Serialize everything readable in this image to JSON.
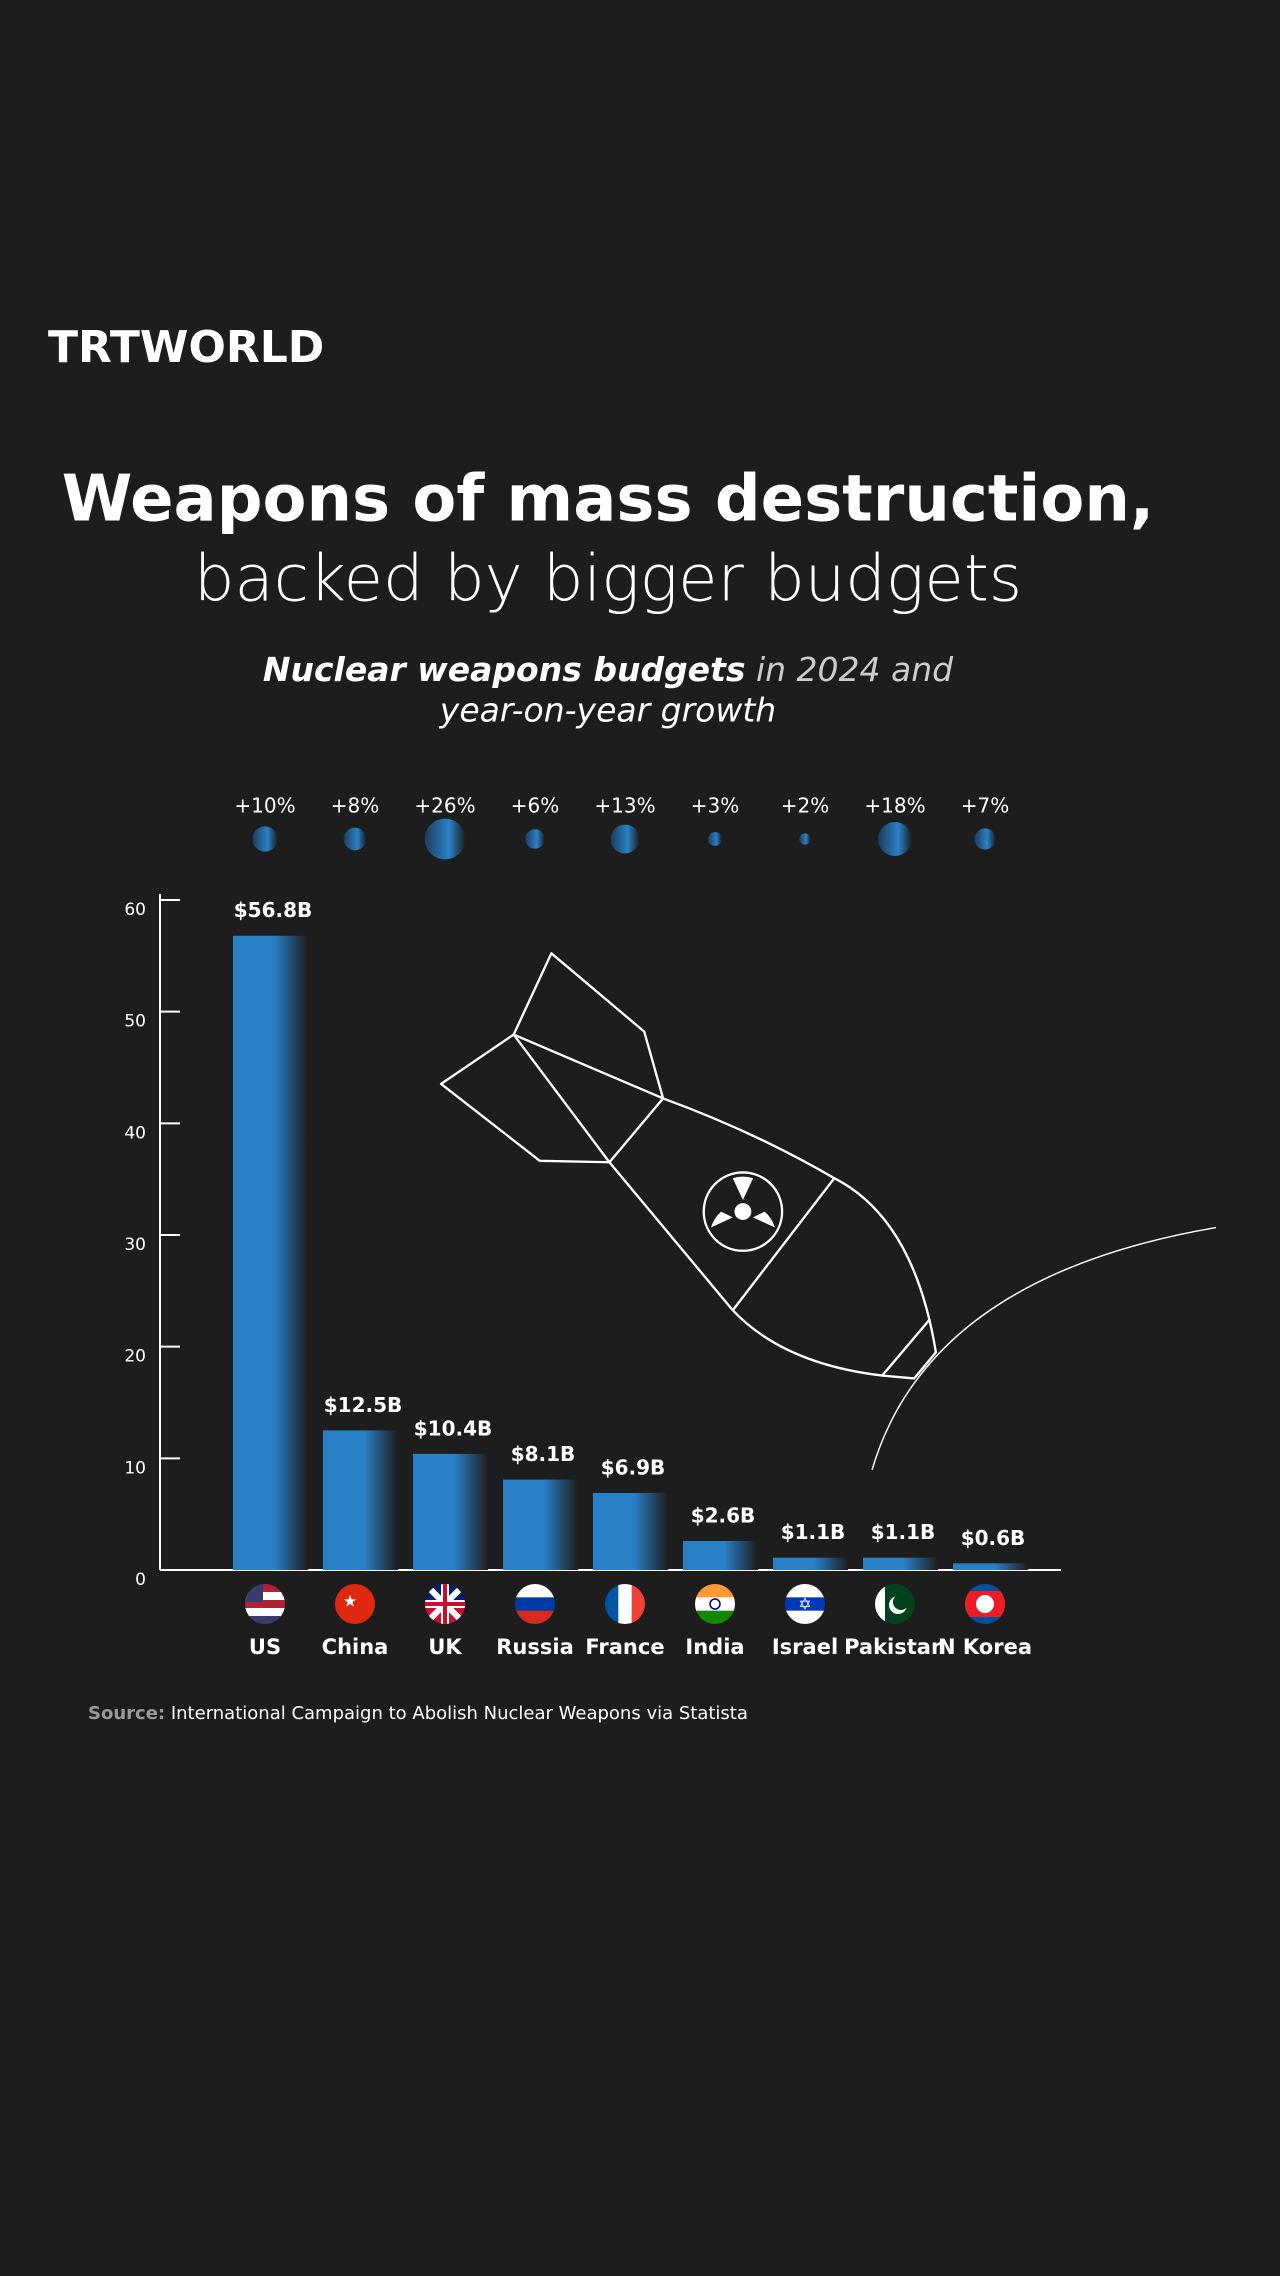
{
  "brand": "TRTWORLD",
  "chart_data": {
    "type": "bar",
    "title": [
      "Weapons of mass destruction,",
      "backed by bigger budgets"
    ],
    "subtitle": [
      "Nuclear weapons budgets",
      "in 2024 and",
      "year-on-year growth"
    ],
    "categories": [
      "US",
      "China",
      "UK",
      "Russia",
      "France",
      "India",
      "Israel",
      "Pakistan",
      "N Korea"
    ],
    "values": [
      56.8,
      12.5,
      10.4,
      8.1,
      6.9,
      2.6,
      1.1,
      1.1,
      0.6
    ],
    "value_labels": [
      "$56.8B",
      "$12.5B",
      "$10.4B",
      "$8.1B",
      "$6.9B",
      "$2.6B",
      "$1.1B",
      "$1.1B",
      "$0.6B"
    ],
    "growth": [
      10,
      8,
      26,
      6,
      13,
      3,
      2,
      18,
      7
    ],
    "growth_labels": [
      "+10%",
      "+8%",
      "+26%",
      "+6%",
      "+13%",
      "+3%",
      "+2%",
      "+18%",
      "+7%"
    ],
    "color": "#2a80c6",
    "ylim": [
      0,
      60
    ],
    "yticks": [
      0,
      10,
      20,
      30,
      40,
      50,
      60
    ],
    "grid": false
  },
  "source": {
    "label": "Source:",
    "text": "International Campaign to Abolish Nuclear Weapons via Statista"
  }
}
